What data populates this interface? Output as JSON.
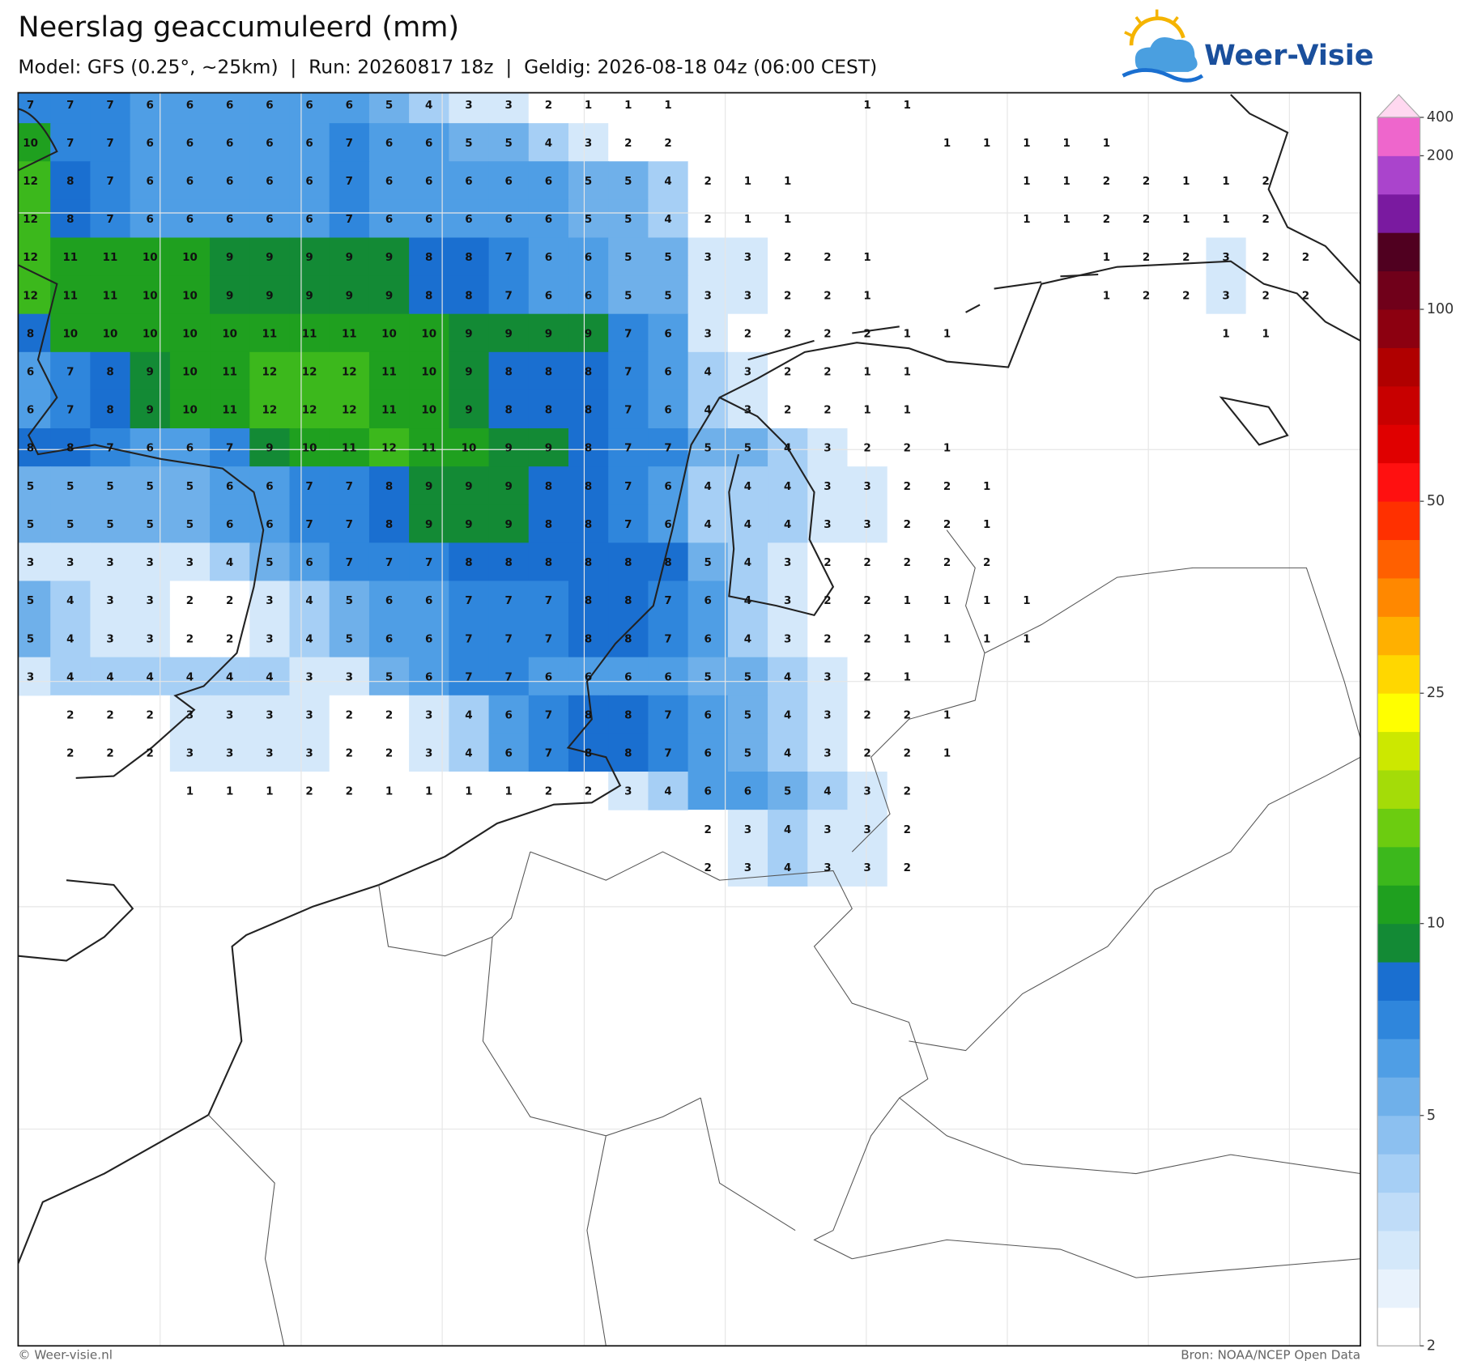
{
  "header": {
    "title": "Neerslag geaccumuleerd (mm)",
    "subtitle": "Model: GFS (0.25°, ~25km)  |  Run: 20260817 18z  |  Geldig: 2026-08-18 04z (06:00 CEST)",
    "logo": "Weer-Visie"
  },
  "map": {
    "rows": [
      [
        7,
        7,
        7,
        6,
        6,
        6,
        6,
        6,
        6,
        5,
        4,
        3,
        3,
        2,
        1,
        1,
        1,
        null,
        null,
        null,
        null,
        1,
        1,
        null,
        null,
        null,
        null,
        null,
        null,
        null,
        null,
        null,
        null
      ],
      [
        10,
        7,
        7,
        6,
        6,
        6,
        6,
        6,
        7,
        6,
        6,
        5,
        5,
        4,
        3,
        2,
        2,
        null,
        null,
        null,
        null,
        null,
        null,
        1,
        1,
        1,
        1,
        1,
        null,
        null,
        null,
        null,
        null
      ],
      [
        12,
        8,
        7,
        6,
        6,
        6,
        6,
        6,
        7,
        6,
        6,
        6,
        6,
        6,
        5,
        5,
        4,
        2,
        1,
        1,
        null,
        null,
        null,
        null,
        null,
        1,
        1,
        2,
        2,
        1,
        1,
        2,
        null
      ],
      [
        12,
        8,
        7,
        6,
        6,
        6,
        6,
        6,
        7,
        6,
        6,
        6,
        6,
        6,
        5,
        5,
        4,
        2,
        1,
        1,
        null,
        null,
        null,
        null,
        null,
        1,
        1,
        2,
        2,
        1,
        1,
        2,
        null
      ],
      [
        12,
        11,
        11,
        10,
        10,
        9,
        9,
        9,
        9,
        9,
        8,
        8,
        7,
        6,
        6,
        5,
        5,
        3,
        3,
        2,
        2,
        1,
        null,
        null,
        null,
        null,
        null,
        1,
        2,
        2,
        3,
        2,
        2
      ],
      [
        12,
        11,
        11,
        10,
        10,
        9,
        9,
        9,
        9,
        9,
        8,
        8,
        7,
        6,
        6,
        5,
        5,
        3,
        3,
        2,
        2,
        1,
        null,
        null,
        null,
        null,
        null,
        1,
        2,
        2,
        3,
        2,
        2
      ],
      [
        8,
        10,
        10,
        10,
        10,
        10,
        11,
        11,
        11,
        10,
        10,
        9,
        9,
        9,
        9,
        7,
        6,
        3,
        2,
        2,
        2,
        2,
        1,
        1,
        null,
        null,
        null,
        null,
        null,
        null,
        1,
        1,
        null
      ],
      [
        6,
        7,
        8,
        9,
        10,
        11,
        12,
        12,
        12,
        11,
        10,
        9,
        8,
        8,
        8,
        7,
        6,
        4,
        3,
        2,
        2,
        1,
        1,
        null,
        null,
        null,
        null,
        null,
        null,
        null,
        null,
        null,
        null
      ],
      [
        6,
        7,
        8,
        9,
        10,
        11,
        12,
        12,
        12,
        11,
        10,
        9,
        8,
        8,
        8,
        7,
        6,
        4,
        3,
        2,
        2,
        1,
        1,
        null,
        null,
        null,
        null,
        null,
        null,
        null,
        null,
        null,
        null
      ],
      [
        8,
        8,
        7,
        6,
        6,
        7,
        9,
        10,
        11,
        12,
        11,
        10,
        9,
        9,
        8,
        7,
        7,
        5,
        5,
        4,
        3,
        2,
        2,
        1,
        null,
        null,
        null,
        null,
        null,
        null,
        null,
        null,
        null
      ],
      [
        5,
        5,
        5,
        5,
        5,
        6,
        6,
        7,
        7,
        8,
        9,
        9,
        9,
        8,
        8,
        7,
        6,
        4,
        4,
        4,
        3,
        3,
        2,
        2,
        1,
        null,
        null,
        null,
        null,
        null,
        null,
        null,
        null
      ],
      [
        5,
        5,
        5,
        5,
        5,
        6,
        6,
        7,
        7,
        8,
        9,
        9,
        9,
        8,
        8,
        7,
        6,
        4,
        4,
        4,
        3,
        3,
        2,
        2,
        1,
        null,
        null,
        null,
        null,
        null,
        null,
        null,
        null
      ],
      [
        3,
        3,
        3,
        3,
        3,
        4,
        5,
        6,
        7,
        7,
        7,
        8,
        8,
        8,
        8,
        8,
        8,
        5,
        4,
        3,
        2,
        2,
        2,
        2,
        2,
        null,
        null,
        null,
        null,
        null,
        null,
        null,
        null
      ],
      [
        5,
        4,
        3,
        3,
        2,
        2,
        3,
        4,
        5,
        6,
        6,
        7,
        7,
        7,
        8,
        8,
        7,
        6,
        4,
        3,
        2,
        2,
        1,
        1,
        1,
        1,
        null,
        null,
        null,
        null,
        null,
        null,
        null
      ],
      [
        5,
        4,
        3,
        3,
        2,
        2,
        3,
        4,
        5,
        6,
        6,
        7,
        7,
        7,
        8,
        8,
        7,
        6,
        4,
        3,
        2,
        2,
        1,
        1,
        1,
        1,
        null,
        null,
        null,
        null,
        null,
        null,
        null
      ],
      [
        3,
        4,
        4,
        4,
        4,
        4,
        4,
        3,
        3,
        5,
        6,
        7,
        7,
        6,
        6,
        6,
        6,
        5,
        5,
        4,
        3,
        2,
        1,
        null,
        null,
        null,
        null,
        null,
        null,
        null,
        null,
        null,
        null
      ],
      [
        null,
        2,
        2,
        2,
        3,
        3,
        3,
        3,
        2,
        2,
        3,
        4,
        6,
        7,
        8,
        8,
        7,
        6,
        5,
        4,
        3,
        2,
        2,
        1,
        null,
        null,
        null,
        null,
        null,
        null,
        null,
        null,
        null
      ],
      [
        null,
        2,
        2,
        2,
        3,
        3,
        3,
        3,
        2,
        2,
        3,
        4,
        6,
        7,
        8,
        8,
        7,
        6,
        5,
        4,
        3,
        2,
        2,
        1,
        null,
        null,
        null,
        null,
        null,
        null,
        null,
        null,
        null
      ],
      [
        null,
        null,
        null,
        null,
        1,
        1,
        1,
        2,
        2,
        1,
        1,
        1,
        1,
        2,
        2,
        3,
        4,
        6,
        6,
        5,
        4,
        3,
        2,
        null,
        null,
        null,
        null,
        null,
        null,
        null,
        null,
        null,
        null
      ],
      [
        null,
        null,
        null,
        null,
        null,
        null,
        null,
        null,
        null,
        null,
        null,
        null,
        null,
        null,
        null,
        null,
        null,
        2,
        3,
        4,
        3,
        3,
        2,
        null,
        null,
        null,
        null,
        null,
        null,
        null,
        null,
        null,
        null
      ],
      [
        null,
        null,
        null,
        null,
        null,
        null,
        null,
        null,
        null,
        null,
        null,
        null,
        null,
        null,
        null,
        null,
        null,
        2,
        3,
        4,
        3,
        3,
        2,
        null,
        null,
        null,
        null,
        null,
        null,
        null,
        null,
        null,
        null
      ]
    ]
  },
  "colorbar": {
    "colors": [
      "#ffffff",
      "#e8f2fc",
      "#d4e8fa",
      "#bfdcf8",
      "#a6cff5",
      "#8cc0f0",
      "#6fb0ea",
      "#4f9ee5",
      "#2f86dc",
      "#1a6fd0",
      "#138a35",
      "#1fa01f",
      "#3cb81c",
      "#6ccc10",
      "#a4dc08",
      "#cce800",
      "#ffff00",
      "#ffd700",
      "#ffb000",
      "#ff8800",
      "#ff6000",
      "#ff3000",
      "#ff1010",
      "#e00000",
      "#c80000",
      "#b00000",
      "#8c0010",
      "#70001a",
      "#500020",
      "#7a1aa0",
      "#aa44cc",
      "#ee66cc"
    ],
    "top_color": "#ffd8f0",
    "ticks": [
      2,
      5,
      10,
      25,
      50,
      100,
      200,
      400
    ]
  },
  "footer": {
    "left": "© Weer-visie.nl",
    "right": "Bron: NOAA/NCEP Open Data"
  }
}
